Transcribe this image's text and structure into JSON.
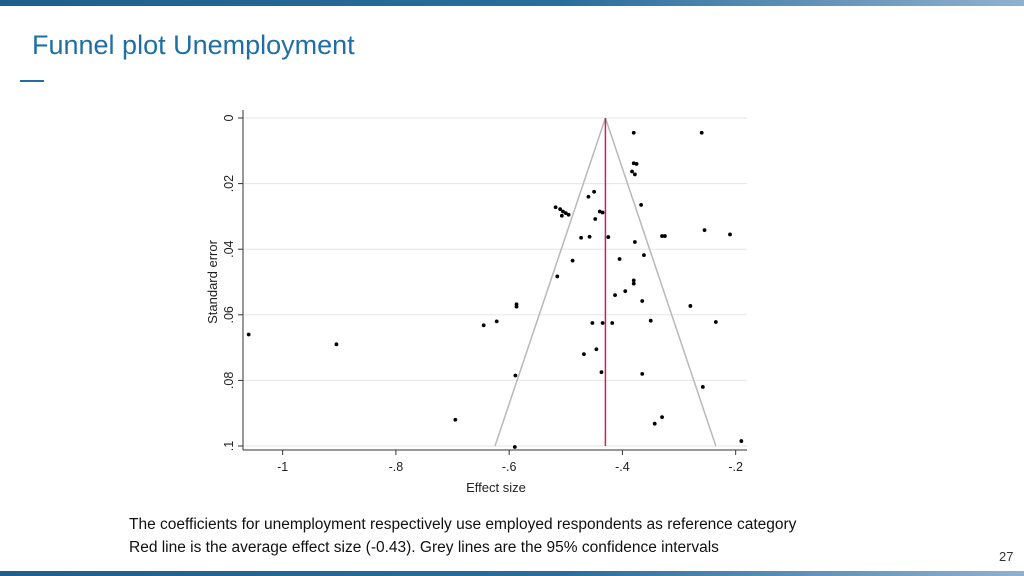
{
  "slide": {
    "title": "Funnel plot Unemployment",
    "caption_line1": "The coefficients for unemployment respectively use employed respondents as reference category",
    "caption_line2": "Red line is the average effect size (-0.43). Grey lines are the 95% confidence intervals",
    "page_number": "27"
  },
  "chart_data": {
    "type": "scatter",
    "xlabel": "Effect size",
    "ylabel": "Standard error",
    "xlim": [
      -1.07,
      -0.18
    ],
    "ylim": [
      0,
      0.1
    ],
    "y_inverted": true,
    "grid": true,
    "x_ticks": [
      {
        "value": -1,
        "label": "-1"
      },
      {
        "value": -0.8,
        "label": "-.8"
      },
      {
        "value": -0.6,
        "label": "-.6"
      },
      {
        "value": -0.4,
        "label": "-.4"
      },
      {
        "value": -0.2,
        "label": "-.2"
      }
    ],
    "y_ticks": [
      {
        "value": 0,
        "label": "0"
      },
      {
        "value": 0.02,
        "label": ".02"
      },
      {
        "value": 0.04,
        "label": ".04"
      },
      {
        "value": 0.06,
        "label": ".06"
      },
      {
        "value": 0.08,
        "label": ".08"
      },
      {
        "value": 0.1,
        "label": ".1"
      }
    ],
    "average_effect": -0.43,
    "ci_lines": [
      {
        "x1": -0.43,
        "y1": 0,
        "x2": -0.625,
        "y2": 0.1
      },
      {
        "x1": -0.43,
        "y1": 0,
        "x2": -0.235,
        "y2": 0.1
      }
    ],
    "line_colors": {
      "average": "#c0245f",
      "ci": "#b8b8b8",
      "points": "#000000"
    },
    "points": [
      {
        "x": -0.38,
        "y": 0.0045
      },
      {
        "x": -0.26,
        "y": 0.0045
      },
      {
        "x": -0.38,
        "y": 0.0138
      },
      {
        "x": -0.375,
        "y": 0.014
      },
      {
        "x": -0.383,
        "y": 0.0163
      },
      {
        "x": -0.378,
        "y": 0.0172
      },
      {
        "x": -0.45,
        "y": 0.0225
      },
      {
        "x": -0.46,
        "y": 0.024
      },
      {
        "x": -0.367,
        "y": 0.0265
      },
      {
        "x": -0.518,
        "y": 0.0272
      },
      {
        "x": -0.51,
        "y": 0.0278
      },
      {
        "x": -0.505,
        "y": 0.0285
      },
      {
        "x": -0.5,
        "y": 0.029
      },
      {
        "x": -0.495,
        "y": 0.0295
      },
      {
        "x": -0.507,
        "y": 0.0298
      },
      {
        "x": -0.44,
        "y": 0.0285
      },
      {
        "x": -0.435,
        "y": 0.0288
      },
      {
        "x": -0.448,
        "y": 0.0308
      },
      {
        "x": -0.255,
        "y": 0.0342
      },
      {
        "x": -0.21,
        "y": 0.0355
      },
      {
        "x": -0.33,
        "y": 0.036
      },
      {
        "x": -0.325,
        "y": 0.036
      },
      {
        "x": -0.473,
        "y": 0.0365
      },
      {
        "x": -0.458,
        "y": 0.0362
      },
      {
        "x": -0.425,
        "y": 0.0363
      },
      {
        "x": -0.378,
        "y": 0.0378
      },
      {
        "x": -0.362,
        "y": 0.0418
      },
      {
        "x": -0.405,
        "y": 0.043
      },
      {
        "x": -0.488,
        "y": 0.0435
      },
      {
        "x": -0.515,
        "y": 0.0483
      },
      {
        "x": -0.38,
        "y": 0.0495
      },
      {
        "x": -0.38,
        "y": 0.0505
      },
      {
        "x": -0.395,
        "y": 0.0528
      },
      {
        "x": -0.413,
        "y": 0.054
      },
      {
        "x": -0.365,
        "y": 0.0558
      },
      {
        "x": -0.587,
        "y": 0.0568
      },
      {
        "x": -0.587,
        "y": 0.0575
      },
      {
        "x": -0.28,
        "y": 0.0573
      },
      {
        "x": -0.35,
        "y": 0.0618
      },
      {
        "x": -0.622,
        "y": 0.062
      },
      {
        "x": -0.645,
        "y": 0.0632
      },
      {
        "x": -0.453,
        "y": 0.0625
      },
      {
        "x": -0.435,
        "y": 0.0625
      },
      {
        "x": -0.418,
        "y": 0.0625
      },
      {
        "x": -0.235,
        "y": 0.0622
      },
      {
        "x": -1.06,
        "y": 0.066
      },
      {
        "x": -0.905,
        "y": 0.069
      },
      {
        "x": -0.446,
        "y": 0.0705
      },
      {
        "x": -0.468,
        "y": 0.072
      },
      {
        "x": -0.437,
        "y": 0.0775
      },
      {
        "x": -0.589,
        "y": 0.0785
      },
      {
        "x": -0.365,
        "y": 0.078
      },
      {
        "x": -0.258,
        "y": 0.082
      },
      {
        "x": -0.695,
        "y": 0.092
      },
      {
        "x": -0.33,
        "y": 0.0912
      },
      {
        "x": -0.343,
        "y": 0.0932
      },
      {
        "x": -0.59,
        "y": 0.1003
      },
      {
        "x": -0.19,
        "y": 0.0985
      }
    ]
  }
}
